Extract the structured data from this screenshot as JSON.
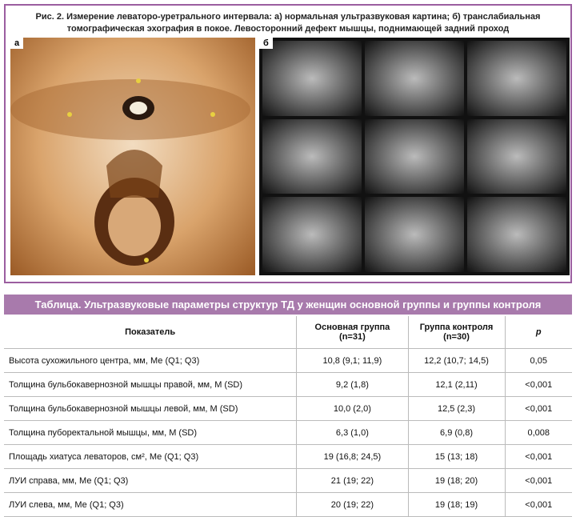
{
  "figure": {
    "caption": [
      "Рис. 2. Измерение леваторо-уретрального интервала: а) нормальная ультразвуковая картина; б) транслабиальная",
      "томографическая эхография в покое. Левосторонний дефект мышцы, поднимающей задний проход"
    ],
    "panels": [
      "а",
      "б"
    ]
  },
  "table": {
    "title": "Таблица. Ультразвуковые параметры структур ТД у женщин основной группы и группы контроля",
    "header": [
      [
        "Показатель"
      ],
      [
        "Основная группа",
        "(n=31)"
      ],
      [
        "Группа контроля",
        "(n=30)"
      ],
      [
        "p"
      ]
    ],
    "rows": [
      [
        "Высота сухожильного центра, мм, Ме (Q1; Q3)",
        "10,8 (9,1; 11,9)",
        "12,2 (10,7; 14,5)",
        "0,05"
      ],
      [
        "Толщина бульбокавернозной мышцы правой, мм, M (SD)",
        "9,2 (1,8)",
        "12,1 (2,11)",
        "<0,001"
      ],
      [
        "Толщина бульбокавернозной мышцы левой, мм, M (SD)",
        "10,0 (2,0)",
        "12,5 (2,3)",
        "<0,001"
      ],
      [
        "Толщина пуборектальной мышцы, мм, M (SD)",
        "6,3 (1,0)",
        "6,9 (0,8)",
        "0,008"
      ],
      [
        "Площадь хиатуса леваторов, см², Ме (Q1; Q3)",
        "19 (16,8; 24,5)",
        "15 (13; 18)",
        "<0,001"
      ],
      [
        "ЛУИ справа, мм,  Ме (Q1; Q3)",
        "21 (19; 22)",
        "19 (18; 20)",
        "<0,001"
      ],
      [
        "ЛУИ слева, мм, Ме (Q1; Q3)",
        "20 (19; 22)",
        "19 (18; 19)",
        "<0,001"
      ]
    ]
  }
}
